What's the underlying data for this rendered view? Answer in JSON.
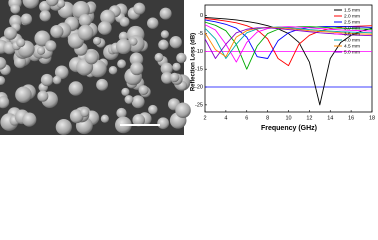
{
  "chart_data": {
    "type": "line",
    "xlabel": "Frequency (GHz)",
    "ylabel": "Reflection Loss (dB)",
    "x": [
      2,
      3,
      4,
      5,
      6,
      7,
      8,
      9,
      10,
      11,
      12,
      13,
      14,
      15,
      16,
      17,
      18
    ],
    "xlim": [
      2,
      18
    ],
    "xticks": [
      2,
      4,
      6,
      8,
      10,
      12,
      14,
      16,
      18
    ],
    "ylim": [
      -27,
      3
    ],
    "yticks": [
      0,
      -5,
      -10,
      -15,
      -20,
      -25
    ],
    "legend": "upper right",
    "reference_lines": [
      {
        "value": -10,
        "color": "#ff00ff"
      },
      {
        "value": -20,
        "color": "#0000ff"
      }
    ],
    "series": [
      {
        "name": "1.5 mm",
        "color": "#000000",
        "values": [
          -0.5,
          -0.7,
          -0.9,
          -1.2,
          -1.6,
          -2.1,
          -2.8,
          -3.7,
          -5,
          -7.5,
          -13,
          -25,
          -12,
          -7.5,
          -5.5,
          -4.3,
          -3.5
        ]
      },
      {
        "name": "2.0 mm",
        "color": "#ff0000",
        "values": [
          -0.8,
          -1.1,
          -1.5,
          -2,
          -2.8,
          -4,
          -6.5,
          -12,
          -14,
          -8,
          -5.5,
          -4.3,
          -3.6,
          -3.2,
          -3,
          -2.9,
          -2.8
        ]
      },
      {
        "name": "2.5 mm",
        "color": "#0000ff",
        "values": [
          -1.2,
          -1.7,
          -2.4,
          -3.5,
          -6,
          -11.5,
          -12,
          -7,
          -4.8,
          -3.8,
          -3.3,
          -3.1,
          -3,
          -3,
          -3.1,
          -3.2,
          -3.3
        ]
      },
      {
        "name": "3.0 mm",
        "color": "#00aa00",
        "values": [
          -1.8,
          -2.7,
          -4.2,
          -8,
          -15,
          -8.5,
          -5,
          -3.8,
          -3.3,
          -3.1,
          -3.1,
          -3.2,
          -3.4,
          -3.5,
          -3.6,
          -3.7,
          -3.8
        ]
      },
      {
        "name": "3.5 mm",
        "color": "#ff00ff",
        "values": [
          -2.5,
          -4,
          -8,
          -13,
          -7.5,
          -4.6,
          -3.6,
          -3.2,
          -3.1,
          -3.2,
          -3.4,
          -3.6,
          -3.8,
          -4,
          -4.1,
          -4.2,
          -4.3
        ]
      },
      {
        "name": "4.0 mm",
        "color": "#00aaaa",
        "values": [
          -3.5,
          -6.5,
          -12,
          -8,
          -4.8,
          -3.7,
          -3.3,
          -3.2,
          -3.4,
          -3.6,
          -3.9,
          -4.1,
          -4.3,
          -4.5,
          -4.6,
          -4.7,
          -4.8
        ]
      },
      {
        "name": "4.5 mm",
        "color": "#ff8800",
        "values": [
          -4.8,
          -9.5,
          -11.5,
          -6,
          -4.2,
          -3.5,
          -3.3,
          -3.4,
          -3.6,
          -3.9,
          -4.2,
          -4.4,
          -4.6,
          -4.8,
          -5,
          -5.1,
          -5.2
        ]
      },
      {
        "name": "5.0 mm",
        "color": "#8800cc",
        "values": [
          -6.5,
          -12,
          -8,
          -4.8,
          -3.8,
          -3.4,
          -3.4,
          -3.6,
          -3.9,
          -4.2,
          -4.5,
          -4.8,
          -5,
          -5.2,
          -5.4,
          -5.5,
          -5.6
        ]
      }
    ]
  }
}
